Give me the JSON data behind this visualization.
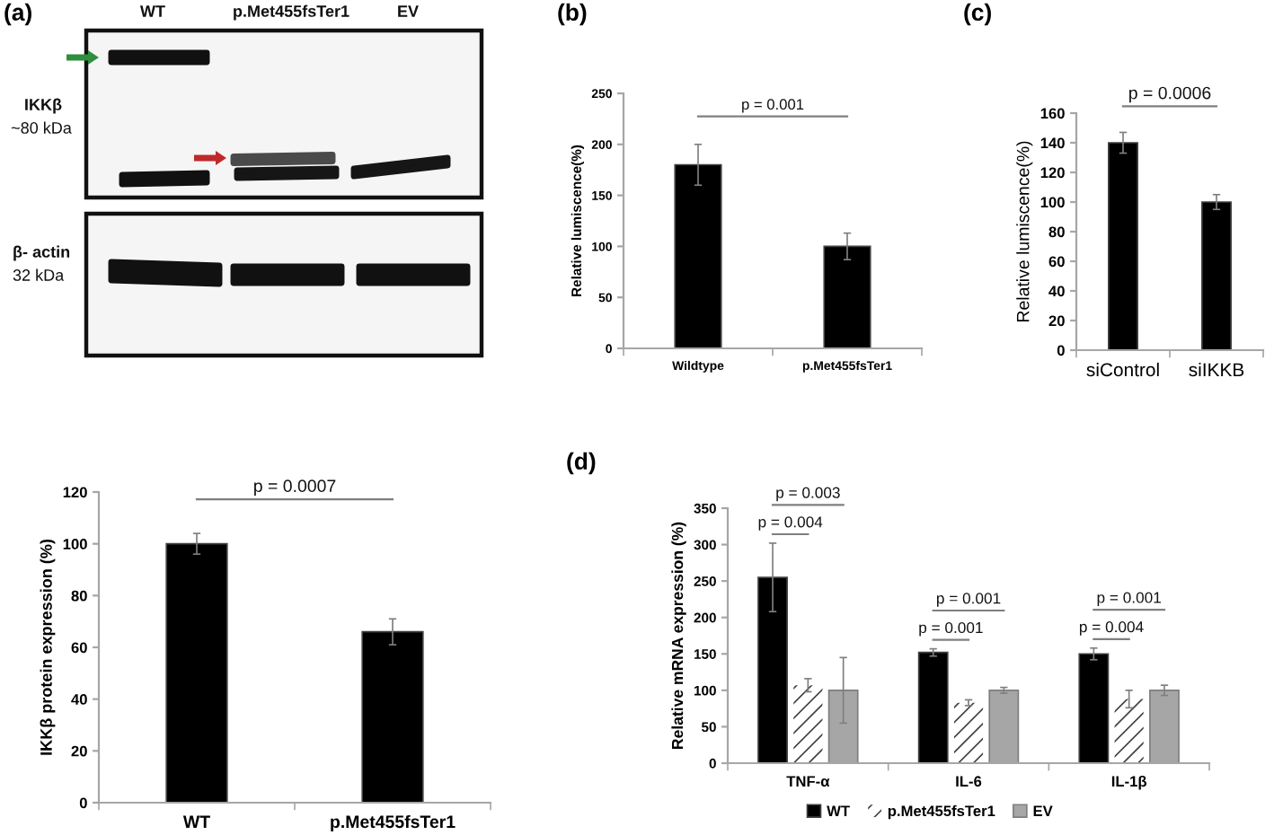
{
  "chart_data": [
    {
      "type": "other",
      "title": "(a)",
      "annotations": [
        "WT",
        "p.Met455fsTer1",
        "EV",
        "IKKβ",
        "~80 kDa",
        "β- actin",
        "32 kDa"
      ]
    },
    {
      "type": "bar",
      "title": "(b)",
      "categories": [
        "Wildtype",
        "p.Met455fsTer1"
      ],
      "values": [
        180,
        100
      ],
      "errors": [
        20,
        13
      ],
      "color": "#000000",
      "ylabel": "Relative lumiscence(%)",
      "ylim": [
        0,
        250
      ],
      "yticks": [
        0,
        50,
        100,
        150,
        200,
        250
      ],
      "annotations": [
        "p = 0.001"
      ]
    },
    {
      "type": "bar",
      "title": "(c)",
      "categories": [
        "siControl",
        "siIKKB"
      ],
      "values": [
        140,
        100
      ],
      "errors": [
        7,
        5
      ],
      "color": "#000000",
      "ylabel": "Relative lumiscence(%)",
      "ylim": [
        0,
        160
      ],
      "yticks": [
        0,
        20,
        40,
        60,
        80,
        100,
        120,
        140,
        160
      ],
      "annotations": [
        "p = 0.0006"
      ]
    },
    {
      "type": "bar",
      "categories": [
        "WT",
        "p.Met455fsTer1"
      ],
      "values": [
        100,
        66
      ],
      "errors": [
        4,
        5
      ],
      "color": "#000000",
      "ylabel": "IKKβ protein expression (%)",
      "ylim": [
        0,
        120
      ],
      "yticks": [
        0,
        20,
        40,
        60,
        80,
        100,
        120
      ],
      "annotations": [
        "p = 0.0007"
      ]
    },
    {
      "type": "bar",
      "title": "(d)",
      "categories": [
        "TNF-α",
        "IL-6",
        "IL-1β"
      ],
      "series": [
        {
          "name": "WT",
          "color": "#000000",
          "values": [
            255,
            152,
            150
          ],
          "errors": [
            47,
            5,
            8
          ]
        },
        {
          "name": "p.Met455fsTer1",
          "color": "#ffffff",
          "values": [
            107,
            83,
            88
          ],
          "errors": [
            9,
            4,
            12
          ]
        },
        {
          "name": "EV",
          "color": "#a6a6a6",
          "values": [
            100,
            100,
            100
          ],
          "errors": [
            45,
            4,
            7
          ]
        }
      ],
      "ylabel": "Relative mRNA expression (%)",
      "ylim": [
        0,
        350
      ],
      "yticks": [
        0,
        50,
        100,
        150,
        200,
        250,
        300,
        350
      ],
      "legend": "bottom",
      "annotations": [
        "p = 0.004",
        "p = 0.003",
        "p = 0.001",
        "p = 0.001",
        "p = 0.004",
        "p = 0.001"
      ]
    }
  ]
}
